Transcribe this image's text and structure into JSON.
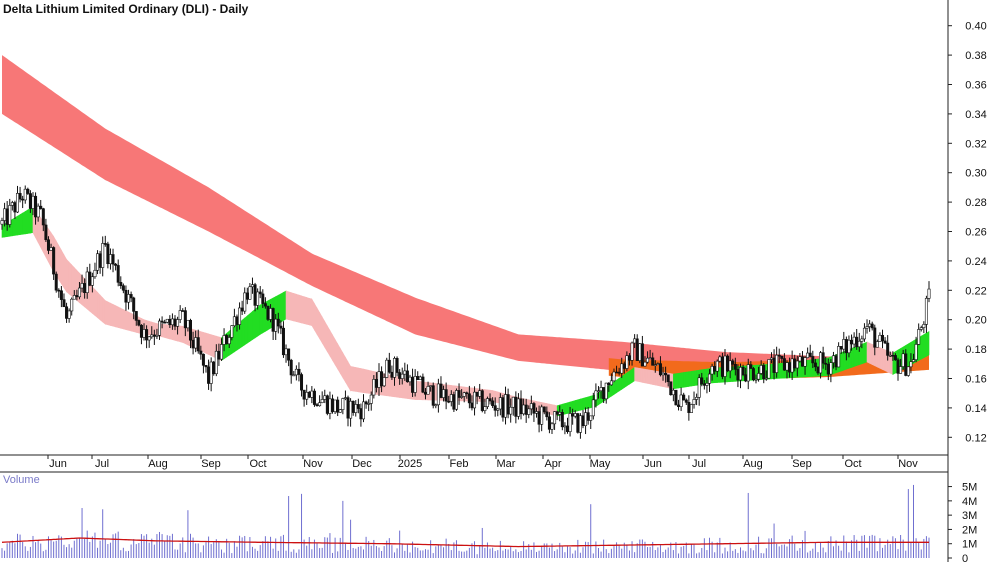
{
  "chart_data": {
    "type": "candlestick",
    "title": "Delta Lithium Limited Ordinary (DLI) - Daily",
    "price_axis": {
      "ylim": [
        0.11,
        0.41
      ],
      "ticks": [
        "0.40",
        "0.38",
        "0.36",
        "0.34",
        "0.32",
        "0.30",
        "0.28",
        "0.26",
        "0.24",
        "0.22",
        "0.20",
        "0.18",
        "0.16",
        "0.14",
        "0.12"
      ]
    },
    "x_labels": [
      "Jun",
      "Jul",
      "Aug",
      "Sep",
      "Oct",
      "Nov",
      "Dec",
      "2025",
      "Feb",
      "Mar",
      "Apr",
      "May",
      "Jun",
      "Jul",
      "Aug",
      "Sep",
      "Oct",
      "Nov"
    ],
    "bars_total": 360,
    "price_anchors": [
      [
        0,
        0.265
      ],
      [
        8,
        0.285
      ],
      [
        15,
        0.27
      ],
      [
        25,
        0.2
      ],
      [
        40,
        0.25
      ],
      [
        55,
        0.19
      ],
      [
        70,
        0.2
      ],
      [
        80,
        0.16
      ],
      [
        95,
        0.22
      ],
      [
        105,
        0.2
      ],
      [
        115,
        0.155
      ],
      [
        130,
        0.14
      ],
      [
        140,
        0.14
      ],
      [
        150,
        0.17
      ],
      [
        165,
        0.15
      ],
      [
        180,
        0.145
      ],
      [
        200,
        0.14
      ],
      [
        215,
        0.13
      ],
      [
        225,
        0.13
      ],
      [
        235,
        0.16
      ],
      [
        245,
        0.18
      ],
      [
        255,
        0.165
      ],
      [
        265,
        0.14
      ],
      [
        275,
        0.17
      ],
      [
        290,
        0.165
      ],
      [
        305,
        0.17
      ],
      [
        320,
        0.17
      ],
      [
        335,
        0.195
      ],
      [
        345,
        0.17
      ],
      [
        352,
        0.17
      ],
      [
        360,
        0.22
      ]
    ],
    "long_band": {
      "color": "#f77777",
      "upper": [
        [
          0,
          0.38
        ],
        [
          40,
          0.33
        ],
        [
          80,
          0.29
        ],
        [
          120,
          0.245
        ],
        [
          160,
          0.215
        ],
        [
          200,
          0.19
        ],
        [
          240,
          0.185
        ],
        [
          280,
          0.178
        ],
        [
          320,
          0.175
        ],
        [
          360,
          0.175
        ]
      ],
      "lower": [
        [
          0,
          0.34
        ],
        [
          40,
          0.295
        ],
        [
          80,
          0.26
        ],
        [
          120,
          0.223
        ],
        [
          160,
          0.19
        ],
        [
          200,
          0.172
        ],
        [
          240,
          0.165
        ],
        [
          280,
          0.163
        ],
        [
          320,
          0.165
        ],
        [
          360,
          0.17
        ]
      ]
    },
    "orange_band_color": "#f26a1c",
    "short_band": {
      "up_color": "#22dd22",
      "down_color": "#f6b7b7",
      "center": [
        [
          0,
          0.26
        ],
        [
          12,
          0.268
        ],
        [
          25,
          0.23
        ],
        [
          40,
          0.205
        ],
        [
          55,
          0.195
        ],
        [
          70,
          0.19
        ],
        [
          85,
          0.18
        ],
        [
          100,
          0.2
        ],
        [
          110,
          0.21
        ],
        [
          120,
          0.205
        ],
        [
          135,
          0.16
        ],
        [
          160,
          0.152
        ],
        [
          190,
          0.148
        ],
        [
          215,
          0.138
        ],
        [
          230,
          0.145
        ],
        [
          245,
          0.163
        ],
        [
          260,
          0.158
        ],
        [
          275,
          0.162
        ],
        [
          300,
          0.165
        ],
        [
          320,
          0.168
        ],
        [
          335,
          0.178
        ],
        [
          345,
          0.17
        ],
        [
          360,
          0.185
        ]
      ],
      "width": [
        [
          0,
          0.004
        ],
        [
          20,
          0.012
        ],
        [
          60,
          0.004
        ],
        [
          100,
          0.01
        ],
        [
          140,
          0.008
        ],
        [
          200,
          0.003
        ],
        [
          260,
          0.005
        ],
        [
          300,
          0.005
        ],
        [
          360,
          0.008
        ]
      ]
    },
    "volume": {
      "label": "Volume",
      "ticks": [
        "5M",
        "4M",
        "3M",
        "2M",
        "1M",
        "0"
      ],
      "ylim": [
        0,
        5600000
      ],
      "bar_color": "#6f6fd0",
      "ma_color": "#cc1111",
      "ma": [
        [
          0,
          1100000
        ],
        [
          30,
          1400000
        ],
        [
          60,
          1200000
        ],
        [
          100,
          1100000
        ],
        [
          150,
          1000000
        ],
        [
          200,
          800000
        ],
        [
          240,
          900000
        ],
        [
          280,
          1000000
        ],
        [
          320,
          1100000
        ],
        [
          360,
          1100000
        ]
      ]
    }
  }
}
